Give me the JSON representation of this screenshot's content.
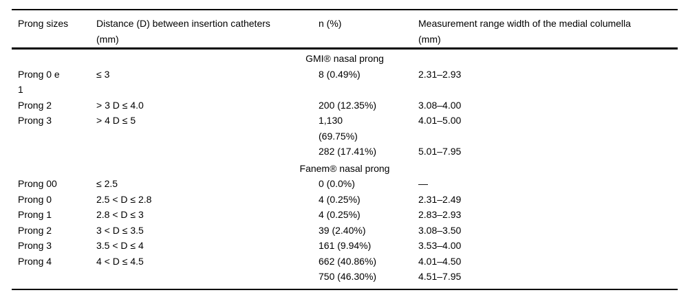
{
  "table": {
    "columns": [
      "Prong sizes",
      "Distance (D) between insertion catheters\n(mm)",
      "n (%)",
      "Measurement range width of the medial columella\n(mm)"
    ],
    "sections": [
      {
        "title": "GMI® nasal prong",
        "rows": [
          [
            "Prong 0 e\n1",
            "≤ 3",
            "8 (0.49%)",
            "2.31–2.93"
          ],
          [
            "Prong 2",
            "> 3 D ≤ 4.0",
            "200 (12.35%)",
            "3.08–4.00"
          ],
          [
            "Prong 3",
            "> 4 D ≤ 5",
            "1,130\n(69.75%)",
            "4.01–5.00"
          ],
          [
            "",
            "",
            "282 (17.41%)",
            "5.01–7.95"
          ]
        ]
      },
      {
        "title": "Fanem® nasal prong",
        "rows": [
          [
            "Prong 00",
            "≤ 2.5",
            "0 (0.0%)",
            "—"
          ],
          [
            "Prong 0",
            "2.5 < D ≤ 2.8",
            "4 (0.25%)",
            "2.31–2.49"
          ],
          [
            "Prong 1",
            "2.8 < D ≤ 3",
            "4 (0.25%)",
            "2.83–2.93"
          ],
          [
            "Prong 2",
            "3 < D ≤ 3.5",
            "39 (2.40%)",
            "3.08–3.50"
          ],
          [
            "Prong 3",
            "3.5 < D ≤ 4",
            "161 (9.94%)",
            "3.53–4.00"
          ],
          [
            "Prong 4",
            "4 < D ≤ 4.5",
            "662 (40.86%)",
            "4.01–4.50"
          ],
          [
            "",
            "",
            "750 (46.30%)",
            "4.51–7.95"
          ]
        ]
      }
    ]
  },
  "colors": {
    "text": "#000000",
    "background": "#ffffff",
    "rule": "#000000"
  }
}
